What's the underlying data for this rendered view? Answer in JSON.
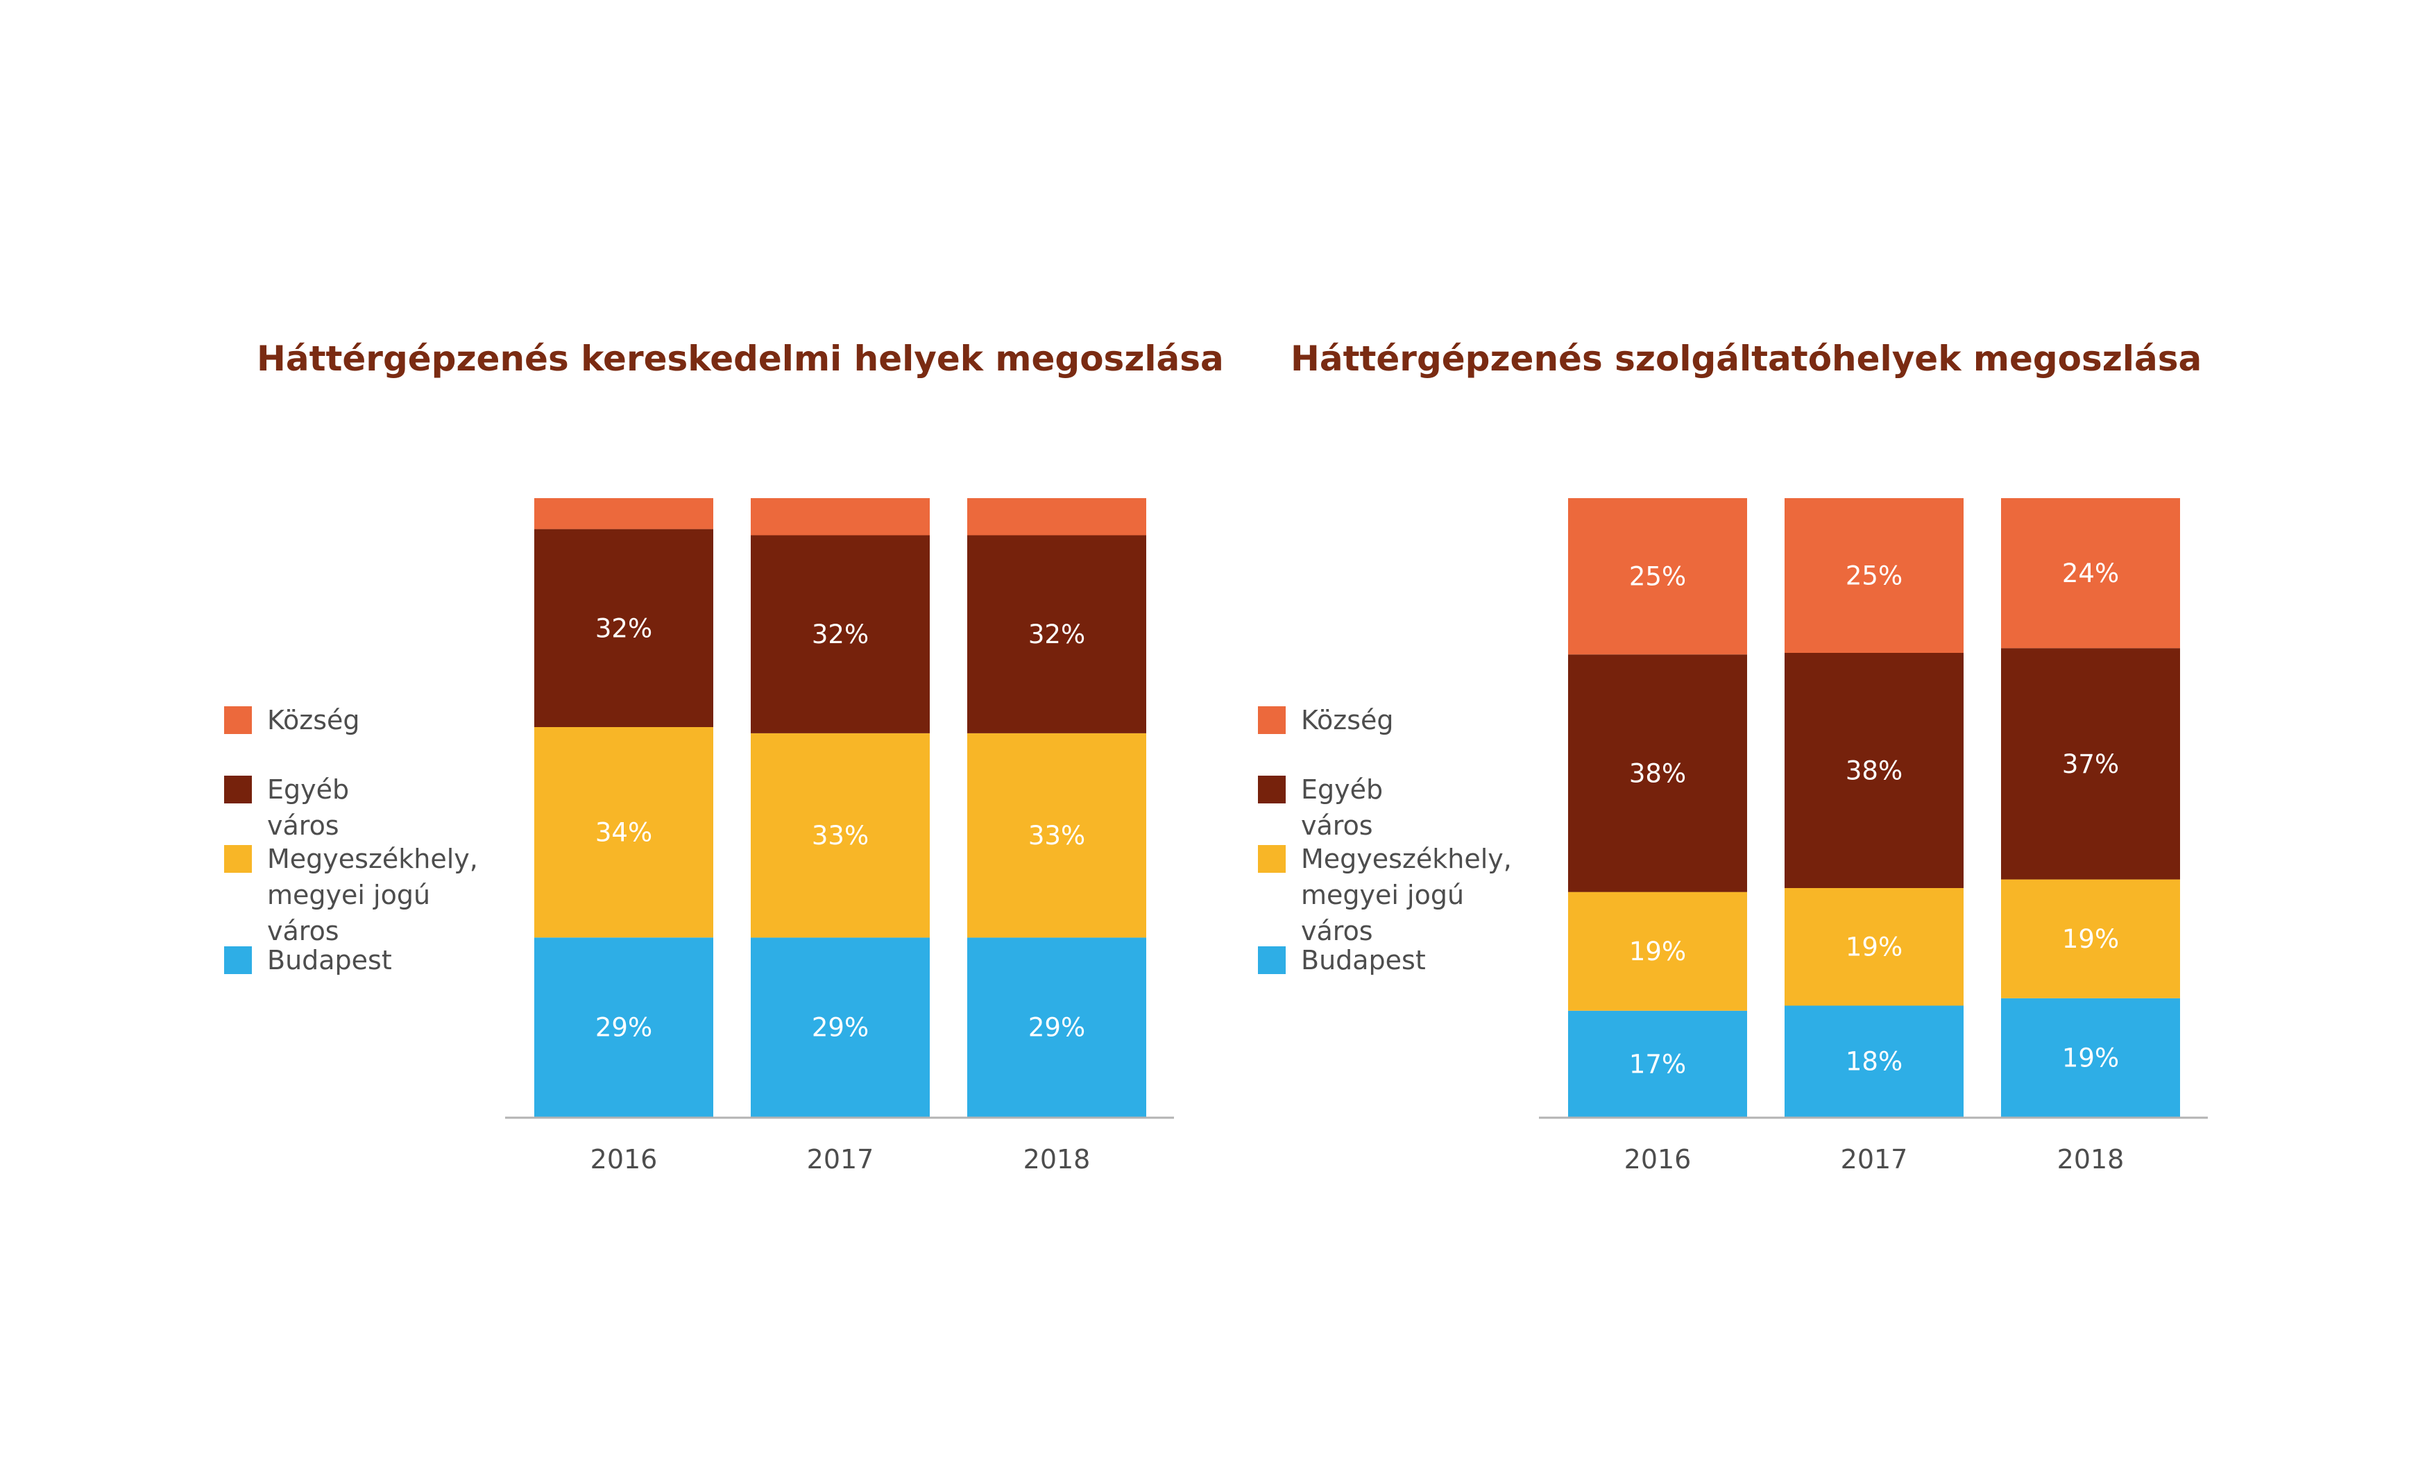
{
  "chart_data": [
    {
      "type": "bar",
      "stacked": true,
      "title": "Háttérgépzenés kereskedelmi helyek megoszlása",
      "categories": [
        "2016",
        "2017",
        "2018"
      ],
      "ylim": [
        0,
        100
      ],
      "series": [
        {
          "name": "Budapest",
          "color": "#2eaee6",
          "values": [
            29,
            29,
            29
          ],
          "labels": [
            "29%",
            "29%",
            "29%"
          ]
        },
        {
          "name": "Megyeszékhely,\nmegyei jogú város",
          "color": "#f8b627",
          "values": [
            34,
            33,
            33
          ],
          "labels": [
            "34%",
            "33%",
            "33%"
          ]
        },
        {
          "name": "Egyéb város",
          "color": "#76220c",
          "values": [
            32,
            32,
            32
          ],
          "labels": [
            "32%",
            "32%",
            "32%"
          ]
        },
        {
          "name": "Község",
          "color": "#ec693c",
          "values": [
            5,
            6,
            6
          ],
          "labels": [
            "",
            "",
            ""
          ]
        }
      ],
      "legend": [
        "Község",
        "Egyéb város",
        "Megyeszékhely,\nmegyei jogú város",
        "Budapest"
      ],
      "legend_placement": "left",
      "grid": false
    },
    {
      "type": "bar",
      "stacked": true,
      "title": "Háttérgépzenés szolgáltatóhelyek megoszlása",
      "categories": [
        "2016",
        "2017",
        "2018"
      ],
      "ylim": [
        0,
        100
      ],
      "series": [
        {
          "name": "Budapest",
          "color": "#2eaee6",
          "values": [
            17,
            18,
            19
          ],
          "labels": [
            "17%",
            "18%",
            "19%"
          ]
        },
        {
          "name": "Megyeszékhely,\nmegyei jogú város",
          "color": "#f8b627",
          "values": [
            19,
            19,
            19
          ],
          "labels": [
            "19%",
            "19%",
            "19%"
          ]
        },
        {
          "name": "Egyéb város",
          "color": "#76220c",
          "values": [
            38,
            38,
            37
          ],
          "labels": [
            "38%",
            "38%",
            "37%"
          ]
        },
        {
          "name": "Község",
          "color": "#ec693c",
          "values": [
            25,
            25,
            24
          ],
          "labels": [
            "25%",
            "25%",
            "24%"
          ]
        }
      ],
      "legend": [
        "Község",
        "Egyéb város",
        "Megyeszékhely,\nmegyei jogú város",
        "Budapest"
      ],
      "legend_placement": "left",
      "grid": false
    }
  ]
}
